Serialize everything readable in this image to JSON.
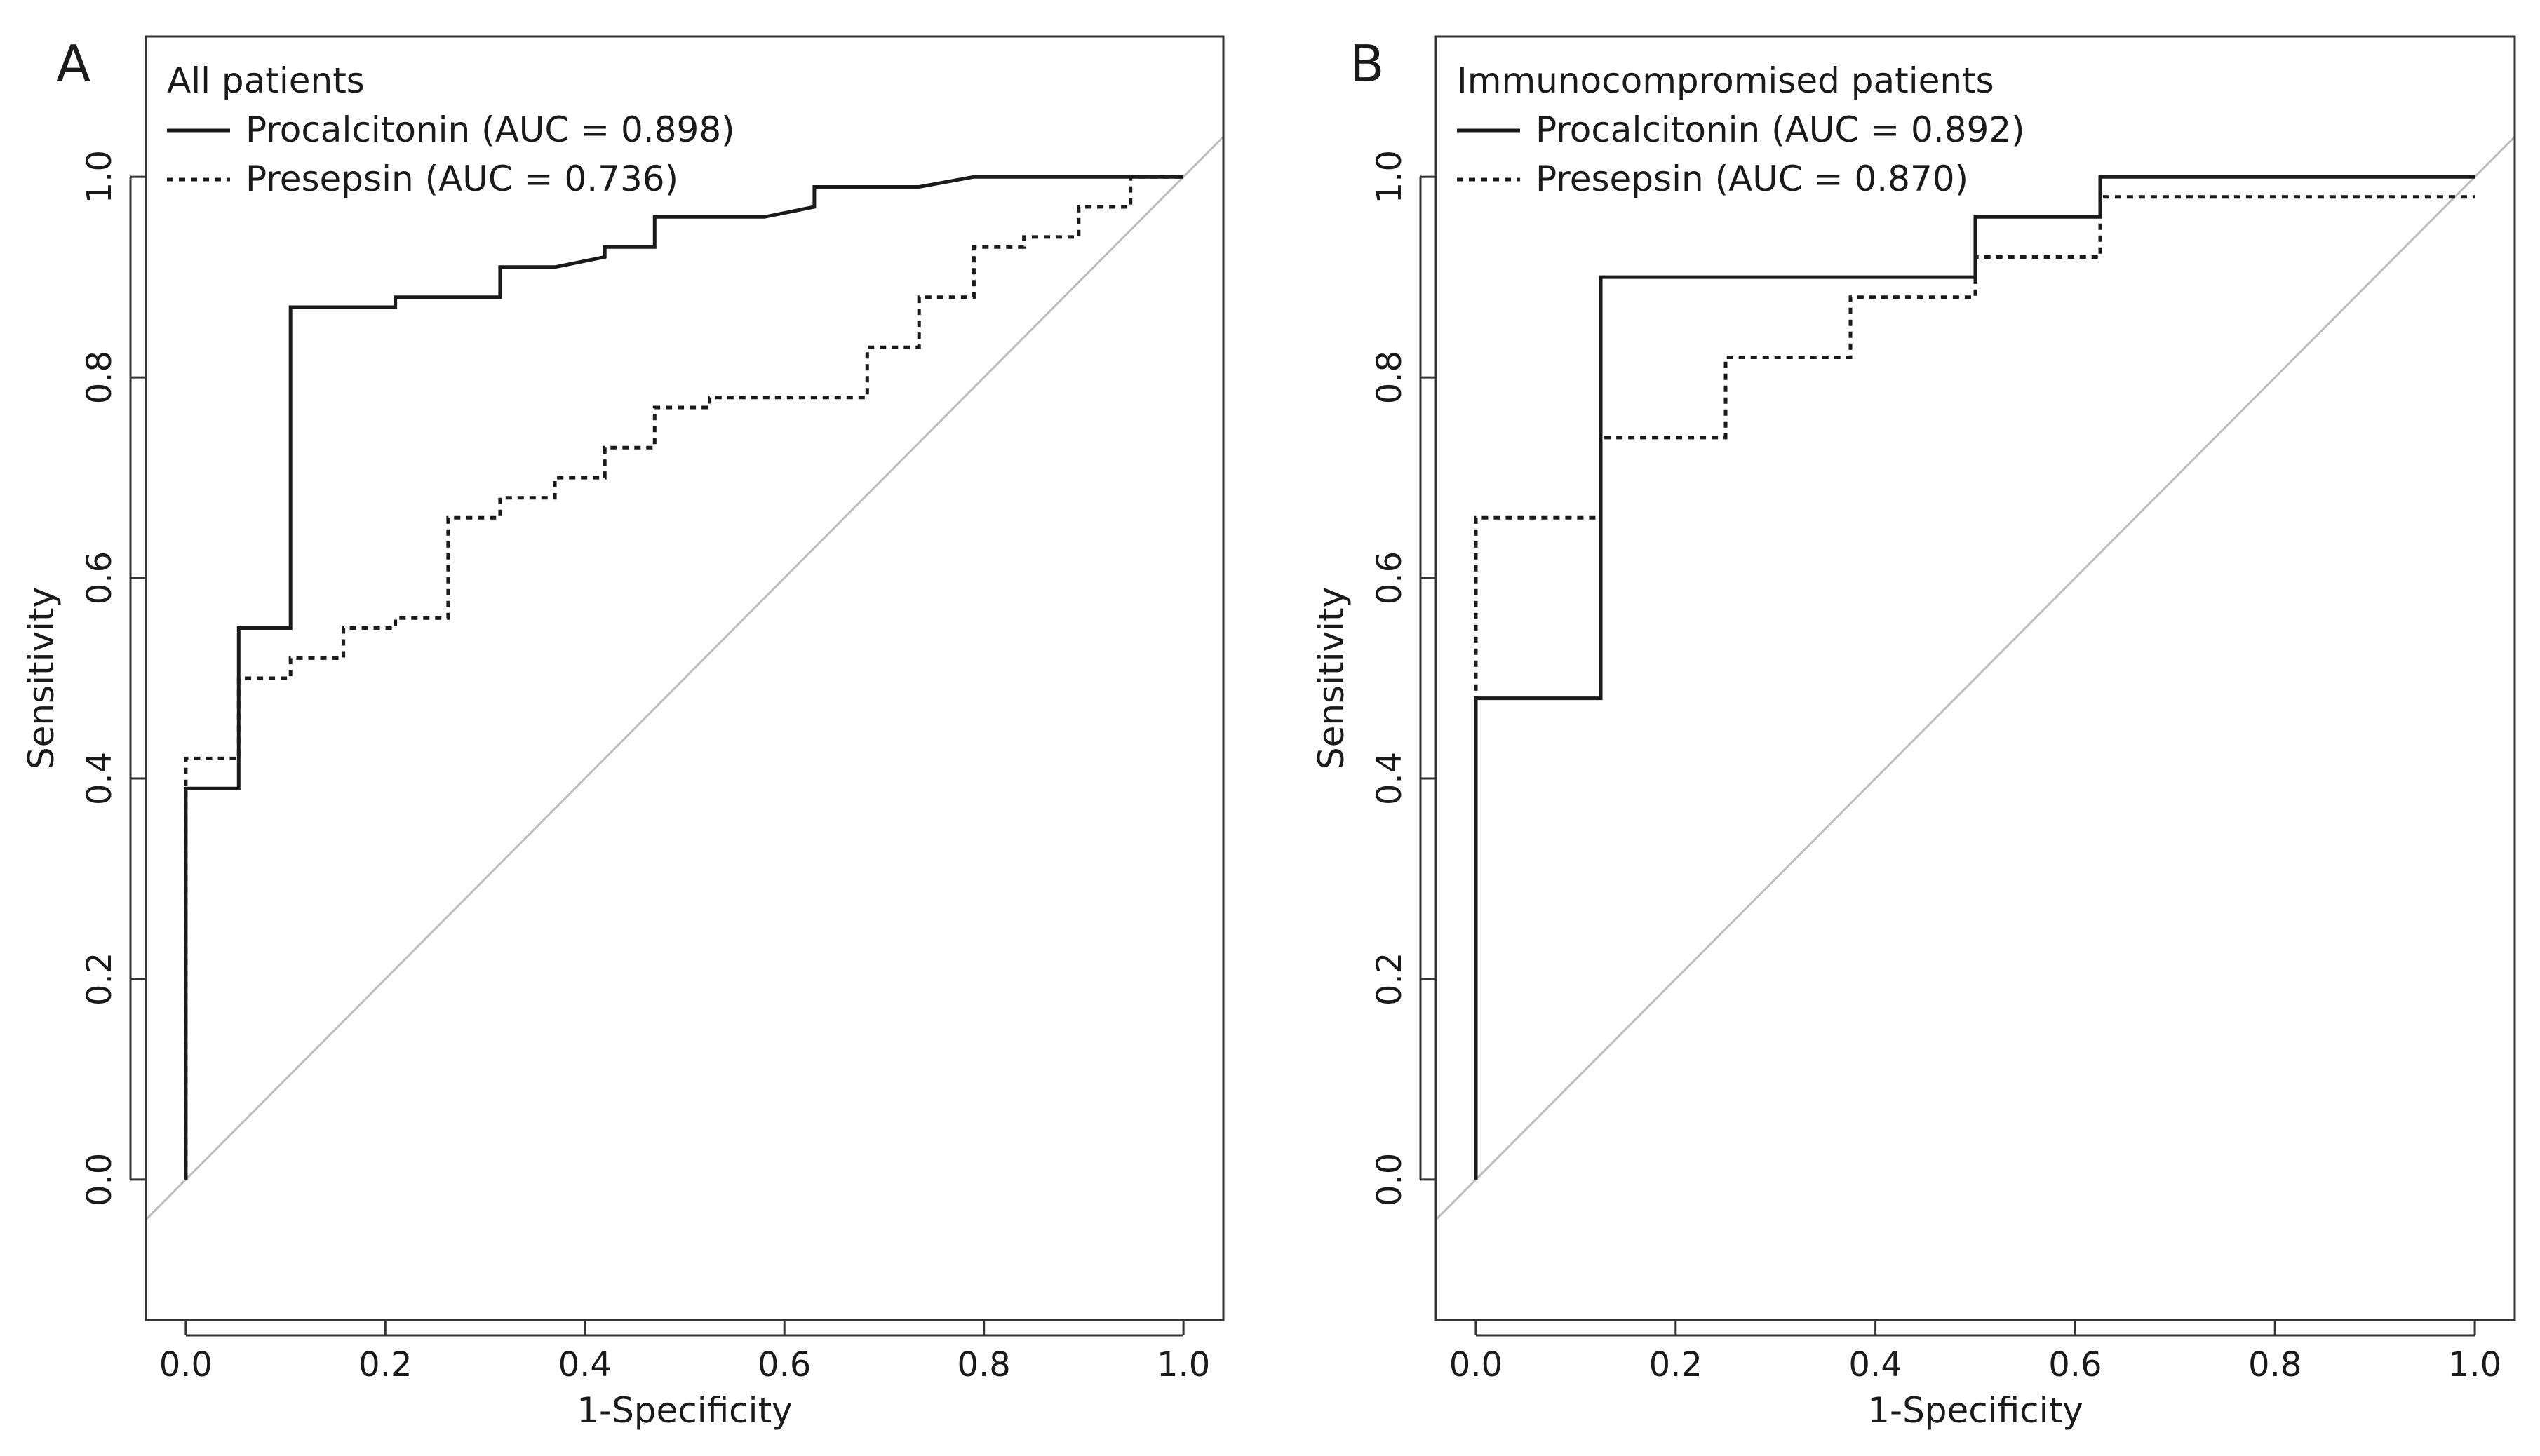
{
  "figure": {
    "domain": "Chart",
    "panels_count": 2
  },
  "chart_data": [
    {
      "panel": "A",
      "type": "line",
      "step": true,
      "title": "All patients",
      "xlabel": "1-Specificity",
      "ylabel": "Sensitivity",
      "xlim": [
        -0.04,
        1.04
      ],
      "ylim": [
        -0.14,
        1.14
      ],
      "xticks": [
        0.0,
        0.2,
        0.4,
        0.6,
        0.8,
        1.0
      ],
      "xtick_labels": [
        "0.0",
        "0.2",
        "0.4",
        "0.6",
        "0.8",
        "1.0"
      ],
      "yticks": [
        0.0,
        0.2,
        0.4,
        0.6,
        0.8,
        1.0
      ],
      "ytick_labels": [
        "0.0",
        "0.2",
        "0.4",
        "0.6",
        "0.8",
        "1.0"
      ],
      "legend_position": "top-left",
      "reference_line": "diagonal",
      "series": [
        {
          "name": "Procalcitonin",
          "legend": "Procalcitonin (AUC = 0.898)",
          "auc": 0.898,
          "style": "solid",
          "x": [
            0.0,
            0.0,
            0.053,
            0.053,
            0.105,
            0.105,
            0.21,
            0.21,
            0.315,
            0.315,
            0.37,
            0.42,
            0.42,
            0.47,
            0.47,
            0.58,
            0.63,
            0.63,
            0.735,
            0.79,
            1.0
          ],
          "y": [
            0.0,
            0.39,
            0.39,
            0.55,
            0.55,
            0.87,
            0.87,
            0.88,
            0.88,
            0.91,
            0.91,
            0.92,
            0.93,
            0.93,
            0.96,
            0.96,
            0.97,
            0.99,
            0.99,
            1.0,
            1.0
          ]
        },
        {
          "name": "Presepsin",
          "legend": "Presepsin (AUC = 0.736)",
          "auc": 0.736,
          "style": "dotted",
          "x": [
            0.0,
            0.0,
            0.053,
            0.053,
            0.105,
            0.105,
            0.158,
            0.158,
            0.21,
            0.21,
            0.263,
            0.263,
            0.315,
            0.315,
            0.37,
            0.37,
            0.42,
            0.42,
            0.47,
            0.47,
            0.525,
            0.525,
            0.683,
            0.683,
            0.735,
            0.735,
            0.79,
            0.79,
            0.84,
            0.84,
            0.895,
            0.895,
            0.947,
            0.947,
            1.0
          ],
          "y": [
            0.0,
            0.42,
            0.42,
            0.5,
            0.5,
            0.52,
            0.52,
            0.55,
            0.55,
            0.56,
            0.56,
            0.66,
            0.66,
            0.68,
            0.68,
            0.7,
            0.7,
            0.73,
            0.73,
            0.77,
            0.77,
            0.78,
            0.78,
            0.83,
            0.83,
            0.88,
            0.88,
            0.93,
            0.93,
            0.94,
            0.94,
            0.97,
            0.97,
            1.0,
            1.0
          ]
        }
      ]
    },
    {
      "panel": "B",
      "type": "line",
      "step": true,
      "title": "Immunocompromised patients",
      "xlabel": "1-Specificity",
      "ylabel": "Sensitivity",
      "xlim": [
        -0.04,
        1.04
      ],
      "ylim": [
        -0.14,
        1.14
      ],
      "xticks": [
        0.0,
        0.2,
        0.4,
        0.6,
        0.8,
        1.0
      ],
      "xtick_labels": [
        "0.0",
        "0.2",
        "0.4",
        "0.6",
        "0.8",
        "1.0"
      ],
      "yticks": [
        0.0,
        0.2,
        0.4,
        0.6,
        0.8,
        1.0
      ],
      "ytick_labels": [
        "0.0",
        "0.2",
        "0.4",
        "0.6",
        "0.8",
        "1.0"
      ],
      "legend_position": "top-left",
      "reference_line": "diagonal",
      "series": [
        {
          "name": "Procalcitonin",
          "legend": "Procalcitonin (AUC = 0.892)",
          "auc": 0.892,
          "style": "solid",
          "x": [
            0.0,
            0.0,
            0.125,
            0.125,
            0.5,
            0.5,
            0.625,
            0.625,
            1.0
          ],
          "y": [
            0.0,
            0.48,
            0.48,
            0.9,
            0.9,
            0.96,
            0.96,
            1.0,
            1.0
          ]
        },
        {
          "name": "Presepsin",
          "legend": "Presepsin (AUC = 0.870)",
          "auc": 0.87,
          "style": "dotted",
          "x": [
            0.0,
            0.0,
            0.125,
            0.125,
            0.25,
            0.25,
            0.375,
            0.375,
            0.5,
            0.5,
            0.625,
            0.625,
            1.0
          ],
          "y": [
            0.0,
            0.66,
            0.66,
            0.74,
            0.74,
            0.82,
            0.82,
            0.88,
            0.88,
            0.92,
            0.92,
            0.98,
            0.98
          ]
        }
      ]
    }
  ],
  "colors": {
    "line": "#1a1a1a",
    "reference_line": "#bdbdbd",
    "frame": "#333333"
  }
}
